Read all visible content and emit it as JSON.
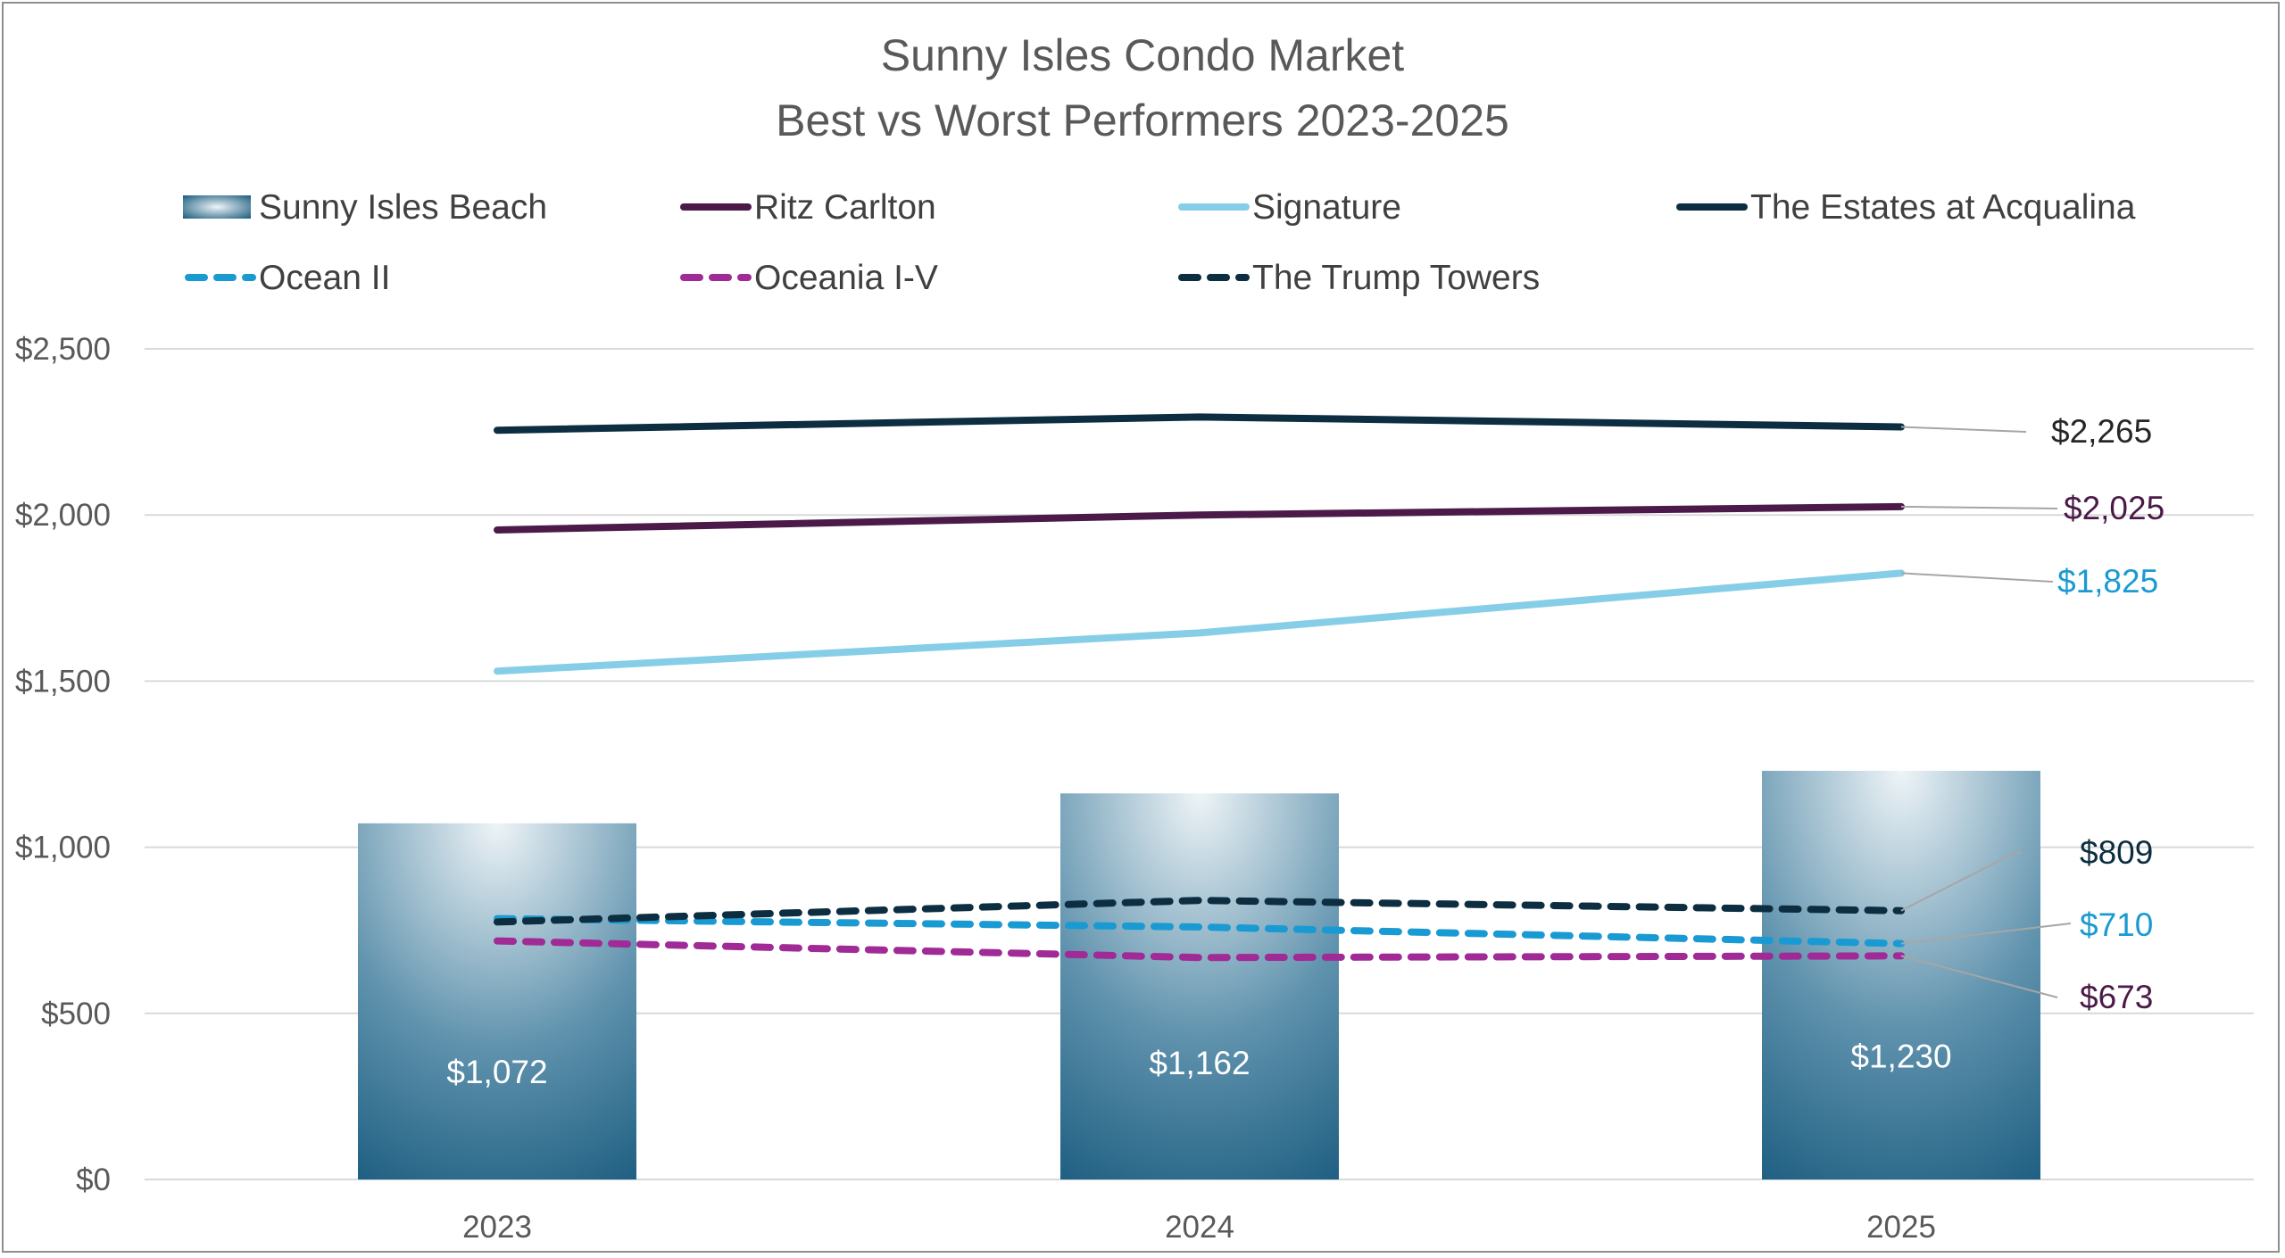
{
  "chart_data": {
    "type": "bar",
    "title": "Sunny Isles Condo Market",
    "subtitle": "Best vs Worst Performers 2023-2025",
    "categories": [
      "2023",
      "2024",
      "2025"
    ],
    "ylim": [
      0,
      2500
    ],
    "yticks": [
      0,
      500,
      1000,
      1500,
      2000,
      2500
    ],
    "ytick_labels": [
      "$0",
      "$500",
      "$1,000",
      "$1,500",
      "$2,000",
      "$2,500"
    ],
    "grid": true,
    "legend_position": "top",
    "bar_series": {
      "name": "Sunny Isles Beach",
      "values": [
        1072,
        1162,
        1230
      ],
      "labels": [
        "$1,072",
        "$1,162",
        "$1,230"
      ],
      "color_top": "#e9f0f4",
      "color_bottom": "#1b5c7f"
    },
    "line_series": [
      {
        "name": "Ritz Carlton",
        "values": [
          1955,
          2000,
          2025
        ],
        "end_label": "$2,025",
        "color": "#4b1a48",
        "label_color": "#4b1a48",
        "dashed": false
      },
      {
        "name": "Signature",
        "values": [
          1530,
          1645,
          1825
        ],
        "end_label": "$1,825",
        "color": "#86cee7",
        "label_color": "#1a9ad2",
        "dashed": false
      },
      {
        "name": "The Estates at Acqualina",
        "values": [
          2255,
          2295,
          2265
        ],
        "end_label": "$2,265",
        "color": "#0c2e40",
        "label_color": "#262626",
        "dashed": false
      },
      {
        "name": "Ocean II",
        "values": [
          785,
          760,
          710
        ],
        "end_label": "$710",
        "color": "#1a9ad2",
        "label_color": "#1a9ad2",
        "dashed": true
      },
      {
        "name": "Oceania I-V",
        "values": [
          718,
          668,
          673
        ],
        "end_label": "$673",
        "color": "#a12b96",
        "label_color": "#4b1a48",
        "dashed": true
      },
      {
        "name": "The Trump Towers",
        "values": [
          775,
          840,
          809
        ],
        "end_label": "$809",
        "color": "#0c2e40",
        "label_color": "#0c2e40",
        "dashed": true
      }
    ]
  }
}
